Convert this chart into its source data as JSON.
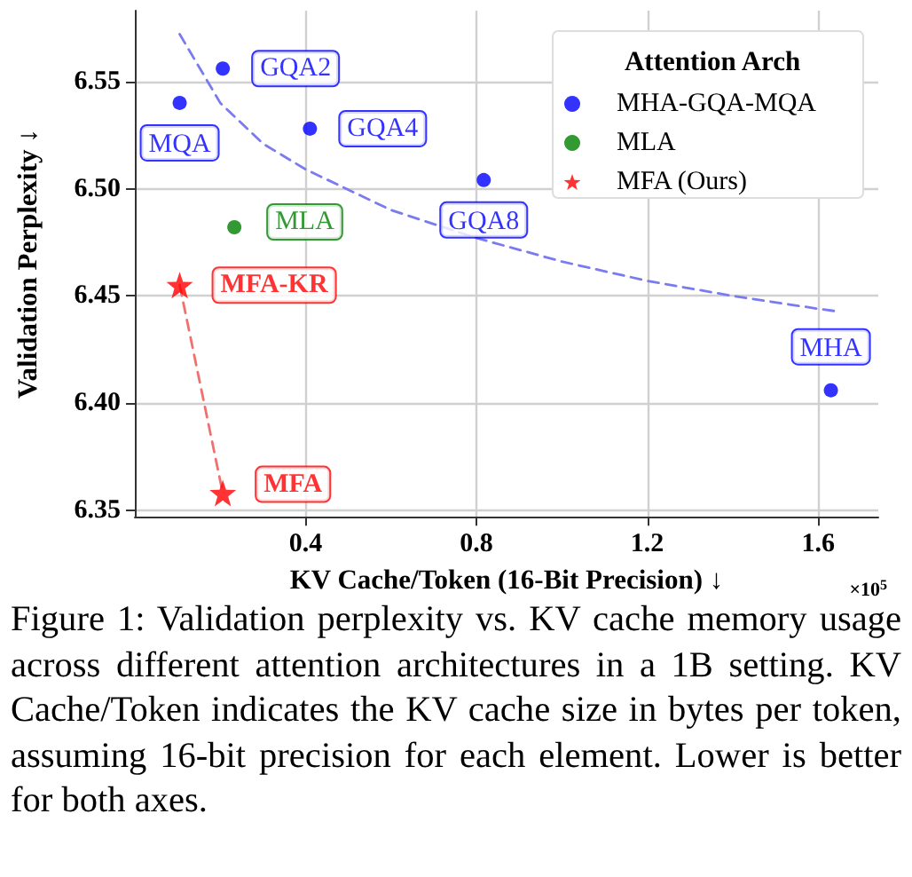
{
  "chart_data": {
    "type": "scatter",
    "xlabel": "KV Cache/Token (16-Bit Precision) ↓",
    "ylabel": "Validation Perplexity ↓",
    "legend_title": "Attention Arch",
    "xlim": [
      0,
      1.741
    ],
    "xticks": [
      0.4,
      0.8,
      1.2,
      1.6
    ],
    "ylim": [
      6.347,
      6.583
    ],
    "yticks": [
      6.35,
      {
        "value": 6.4,
        "label": "6.40"
      },
      6.45,
      {
        "value": 6.5,
        "label": "6.50"
      },
      6.55
    ],
    "grid": true,
    "legend": "top right",
    "series": [
      {
        "name": "MHA-GQA-MQA",
        "color": "#0000ff",
        "marker": "circle",
        "x": [
          0.105,
          0.206,
          0.41,
          0.817,
          1.63
        ],
        "values": [
          6.54,
          6.556,
          6.528,
          6.504,
          6.406
        ]
      },
      {
        "name": "MLA",
        "color": "#008000",
        "marker": "circle",
        "x": [
          0.233
        ],
        "values": [
          6.482
        ]
      },
      {
        "name": "MFA (Ours)",
        "color": "#ff0000",
        "marker": "star",
        "x": [
          0.105,
          0.206
        ],
        "values": [
          6.455,
          6.358
        ]
      },
      {
        "type": "line",
        "color": "#7b7bf0",
        "line_style": "dashed",
        "marker": "none",
        "x": [
          0.105,
          0.2,
          0.3,
          0.4,
          0.6,
          0.8,
          1.0,
          1.2,
          1.4,
          1.6,
          1.637
        ],
        "values": [
          6.572,
          6.54,
          6.521,
          6.509,
          6.49,
          6.477,
          6.466,
          6.457,
          6.45,
          6.444,
          6.443
        ]
      },
      {
        "type": "line",
        "color": "#f07070",
        "line_style": "dashed",
        "marker": "none",
        "x": [
          0.105,
          0.206
        ],
        "values": [
          6.455,
          6.358
        ]
      }
    ],
    "annotations": [
      {
        "text": "MQA",
        "x": 0.105,
        "y": 6.54
      },
      {
        "text": "GQA2",
        "x": 0.206,
        "y": 6.556
      },
      {
        "text": "GQA4",
        "x": 0.41,
        "y": 6.528
      },
      {
        "text": "GQA8",
        "x": 0.817,
        "y": 6.504
      },
      {
        "text": "MHA",
        "x": 1.63,
        "y": 6.406
      },
      {
        "text": "MLA",
        "x": 0.233,
        "y": 6.482
      },
      {
        "text": "MFA-KR",
        "x": 0.105,
        "y": 6.455
      },
      {
        "text": "MFA",
        "x": 0.206,
        "y": 6.358
      },
      "×10$^{5}$",
      "Figure 1: Validation perplexity vs. KV cache memory usage across different attention architectures in a 1B setting. KV Cache/Token indicates the KV cache size in bytes per token, assuming 16-bit precision for each element. Lower is better for both axes."
    ]
  }
}
